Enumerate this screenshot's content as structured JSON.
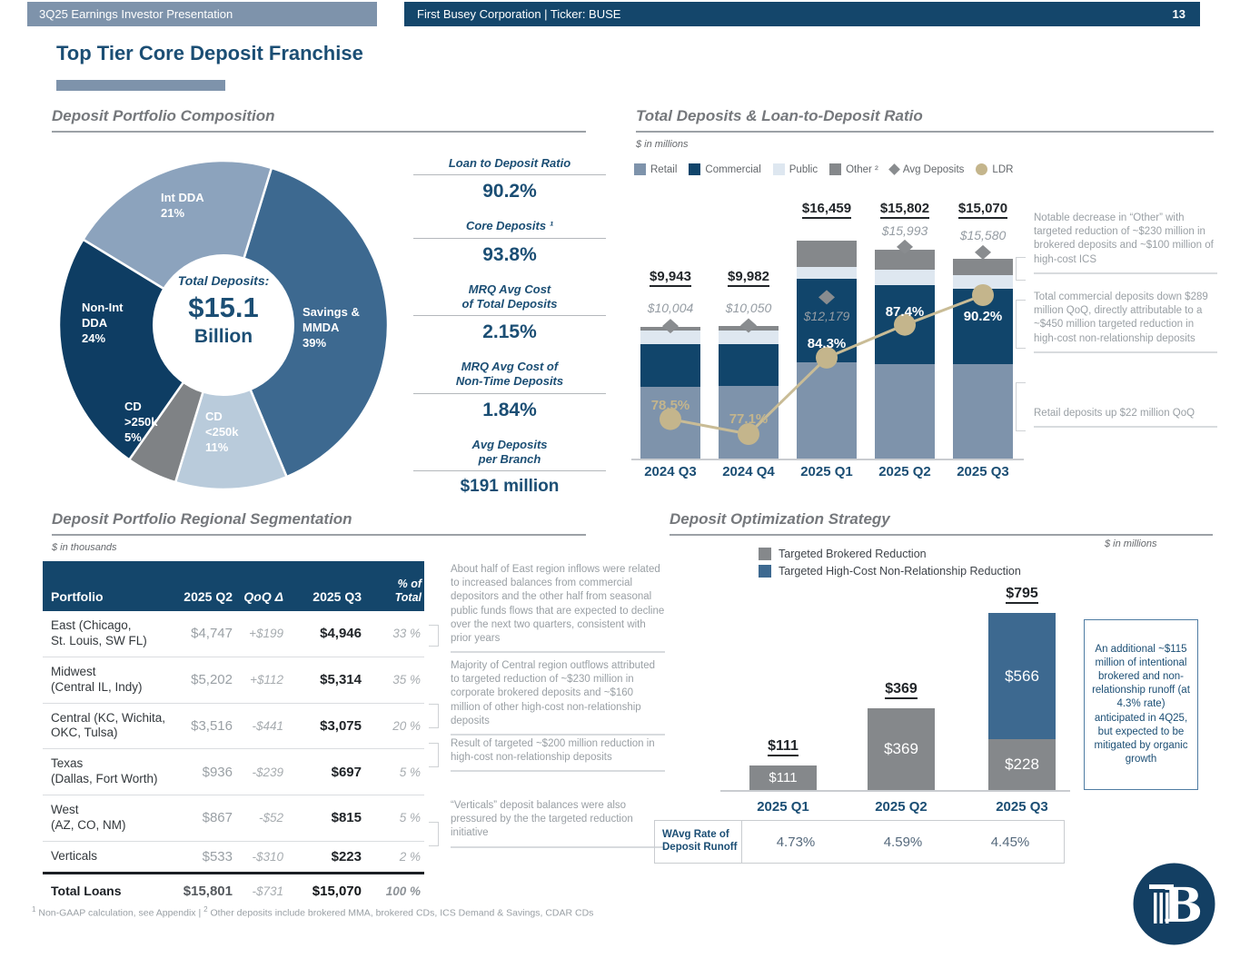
{
  "header": {
    "left_banner": "3Q25 Earnings Investor Presentation",
    "center_banner": "First Busey Corporation  |  Ticker: BUSE",
    "page_number": "13",
    "title": "Top Tier Core Deposit Franchise"
  },
  "composition": {
    "title": "Deposit Portfolio Composition",
    "center": {
      "label": "Total Deposits:",
      "value": "$15.1",
      "unit": "Billion"
    },
    "stats": [
      {
        "label": "Loan to Deposit Ratio",
        "value": "90.2%"
      },
      {
        "label": "Core Deposits ¹",
        "value": "93.8%"
      },
      {
        "label": "MRQ Avg Cost\nof Total Deposits",
        "value": "2.15%"
      },
      {
        "label": "MRQ Avg Cost of\nNon-Time Deposits",
        "value": "1.84%"
      },
      {
        "label": "Avg Deposits\nper Branch",
        "value": "$191 million"
      }
    ]
  },
  "total_deposits": {
    "title": "Total Deposits & Loan-to-Deposit Ratio",
    "units_note": "$ in millions",
    "annotations": [
      "Notable decrease in “Other” with targeted reduction of ~$230 million in brokered deposits and ~$100 million of high-cost ICS",
      "Total commercial deposits down $289 million QoQ, directly attributable to a ~$450 million targeted reduction in high-cost non-relationship deposits",
      "Retail deposits up $22 million QoQ"
    ]
  },
  "segmentation": {
    "title": "Deposit Portfolio Regional Segmentation",
    "units_note": "$ in thousands",
    "columns": [
      "Portfolio",
      "2025 Q2",
      "QoQ Δ",
      "2025 Q3",
      "% of\nTotal"
    ],
    "rows": [
      {
        "region": "East (Chicago,\nSt. Louis, SW FL)",
        "q2": "$4,747",
        "delta": "+$199",
        "q3": "$4,946",
        "pct": "33 %"
      },
      {
        "region": "Midwest\n(Central IL, Indy)",
        "q2": "$5,202",
        "delta": "+$112",
        "q3": "$5,314",
        "pct": "35 %"
      },
      {
        "region": "Central (KC, Wichita,\nOKC, Tulsa)",
        "q2": "$3,516",
        "delta": "-$441",
        "q3": "$3,075",
        "pct": "20 %"
      },
      {
        "region": "Texas\n(Dallas, Fort Worth)",
        "q2": "$936",
        "delta": "-$239",
        "q3": "$697",
        "pct": "5 %"
      },
      {
        "region": "West\n(AZ, CO, NM)",
        "q2": "$867",
        "delta": "-$52",
        "q3": "$815",
        "pct": "5 %"
      },
      {
        "region": "Verticals",
        "q2": "$533",
        "delta": "-$310",
        "q3": "$223",
        "pct": "2 %"
      }
    ],
    "total_row": {
      "region": "Total Loans",
      "q2": "$15,801",
      "delta": "-$731",
      "q3": "$15,070",
      "pct": "100 %"
    },
    "annotations": [
      "About half of East region inflows were related to increased balances from commercial depositors and the other half from seasonal public funds flows that are expected to decline over the next two quarters, consistent with prior years",
      "Majority of Central region outflows attributed to targeted reduction of ~$230 million in corporate brokered deposits and ~$160 million of other high-cost non-relationship deposits",
      "Result of targeted ~$200 million reduction in high-cost non-relationship deposits",
      "“Verticals” deposit balances were also pressured by the the targeted reduction initiative"
    ]
  },
  "optimization": {
    "title": "Deposit Optimization Strategy",
    "units_note": "$ in millions",
    "note": "An additional ~$115 million of intentional brokered and non-relationship runoff (at 4.3% rate) anticipated in 4Q25, but expected to be mitigated by organic growth",
    "runoff_table": {
      "label": "WAvg Rate of\nDeposit Runoff",
      "values": [
        "4.73%",
        "4.59%",
        "4.45%"
      ]
    }
  },
  "footer": {
    "sup1": "1",
    "note1": "Non-GAAP calculation, see Appendix",
    "sep": "|",
    "sup2": "2",
    "note2": "Other deposits include brokered MMA, brokered CDs, ICS Demand & Savings, CDAR CDs"
  },
  "colors": {
    "navy": "#14466B",
    "title_navy": "#1B4E74",
    "slate_blue": "#7E93AB",
    "medium_blue": "#3D6990",
    "pale_blue": "#B9CBDB",
    "lightest_blue": "#DEE7F0",
    "gray": "#85888B",
    "tan": "#C4B58C",
    "diamond_gray": "#898C8F"
  },
  "chart_data": [
    {
      "type": "pie",
      "title": "Deposit Portfolio Composition",
      "center_label": "Total Deposits:",
      "center_value": "$15.1",
      "center_unit": "Billion",
      "start_angle_deg": 17,
      "slices": [
        {
          "label": "Savings &\nMMDA",
          "pct": "39%",
          "value": 39,
          "color": "#3D6990"
        },
        {
          "label": "CD\n<250k",
          "pct": "11%",
          "value": 11,
          "color": "#B9CBDB"
        },
        {
          "label": "CD\n>250k",
          "pct": "5%",
          "value": 5,
          "color": "#7F8285"
        },
        {
          "label": "Non-Int\nDDA",
          "pct": "24%",
          "value": 24,
          "color": "#0E3D63"
        },
        {
          "label": "Int DDA",
          "pct": "21%",
          "value": 21,
          "color": "#8CA3BD"
        }
      ]
    },
    {
      "type": "bar",
      "stacked": true,
      "title": "Total Deposits & Loan-to-Deposit Ratio",
      "units": "$ in millions",
      "categories": [
        "2024 Q3",
        "2024 Q4",
        "2025 Q1",
        "2025 Q2",
        "2025 Q3"
      ],
      "series": [
        {
          "name": "Retail",
          "color": "#7E93AB",
          "values": [
            5393,
            5500,
            7300,
            7120,
            7142
          ]
        },
        {
          "name": "Commercial",
          "color": "#11456B",
          "values": [
            3250,
            3150,
            6260,
            5950,
            5661
          ]
        },
        {
          "name": "Public",
          "color": "#DEE7F0",
          "values": [
            1050,
            1032,
            880,
            1230,
            1040
          ]
        },
        {
          "name": "Other ²",
          "color": "#85888B",
          "values": [
            250,
            300,
            2019,
            1502,
            1227
          ]
        }
      ],
      "totals": [
        9943,
        9982,
        16459,
        15802,
        15070
      ],
      "totals_display": [
        "$9,943",
        "$9,982",
        "$16,459",
        "$15,802",
        "$15,070"
      ],
      "avg_deposits": [
        10004,
        10050,
        12179,
        15993,
        15580
      ],
      "avg_display": [
        "$10,004",
        "$10,050",
        "$12,179",
        "$15,993",
        "$15,580"
      ],
      "ldr": [
        78.5,
        77.1,
        84.3,
        87.4,
        90.2
      ],
      "ldr_display": [
        "78.5%",
        "77.1%",
        "84.3%",
        "87.4%",
        "90.2%"
      ],
      "marker_legend": [
        {
          "name": "Avg Deposits",
          "shape": "diamond",
          "color": "#898C8F"
        },
        {
          "name": "LDR",
          "shape": "circle",
          "color": "#C4B58C"
        }
      ]
    },
    {
      "type": "bar",
      "stacked": true,
      "title": "Deposit Optimization Strategy",
      "units": "$ in millions",
      "categories": [
        "2025 Q1",
        "2025 Q2",
        "2025 Q3"
      ],
      "series": [
        {
          "name": "Targeted Brokered Reduction",
          "color": "#85888B",
          "values": [
            111,
            369,
            228
          ],
          "display": [
            "$111",
            "$369",
            "$228"
          ]
        },
        {
          "name": "Targeted High-Cost Non-Relationship Reduction",
          "color": "#3D6990",
          "values": [
            0,
            0,
            566
          ],
          "display": [
            "",
            "",
            "$566"
          ]
        }
      ],
      "totals": [
        111,
        369,
        795
      ],
      "totals_display": [
        "$111",
        "$369",
        "$795"
      ],
      "runoff_rates": [
        "4.73%",
        "4.59%",
        "4.45%"
      ]
    }
  ]
}
